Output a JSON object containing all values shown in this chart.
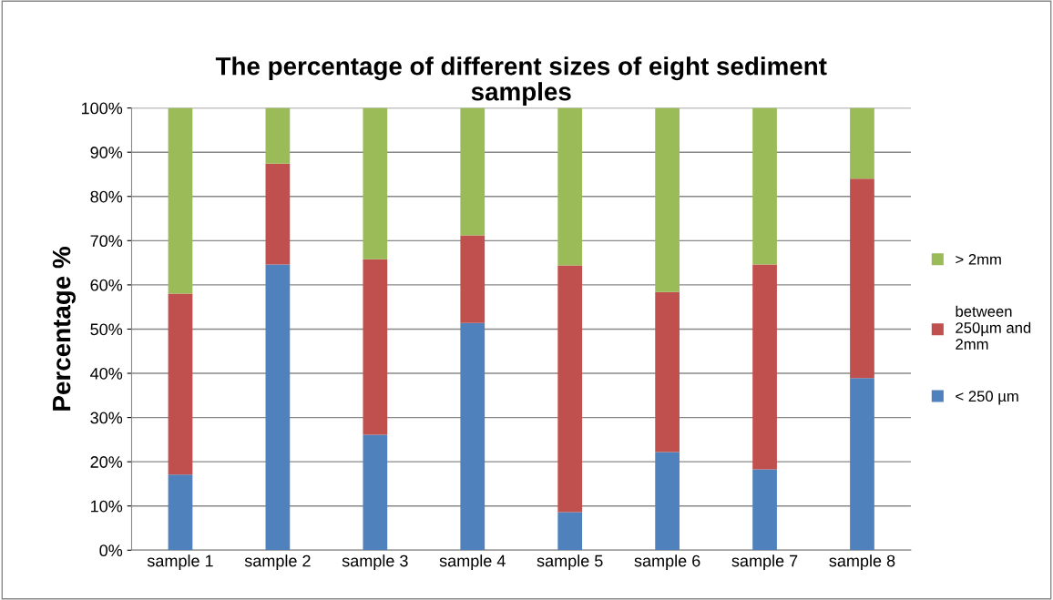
{
  "chart_data": {
    "type": "bar",
    "stacked": true,
    "title": "The percentage of different sizes of eight sediment samples",
    "ylabel": "Percentage %",
    "categories": [
      "sample 1",
      "sample 2",
      "sample 3",
      "sample 4",
      "sample 5",
      "sample 6",
      "sample 7",
      "sample 8"
    ],
    "series": [
      {
        "name": "< 250 µm",
        "color": "#4f81bd",
        "values": [
          17.1,
          64.6,
          26.1,
          51.4,
          8.6,
          22.2,
          18.3,
          38.9
        ]
      },
      {
        "name": "between 250µm and 2mm",
        "color": "#c0504d",
        "values": [
          40.9,
          22.8,
          39.7,
          19.8,
          55.8,
          36.2,
          46.3,
          45.1
        ]
      },
      {
        "name": "> 2mm",
        "color": "#9bbb59",
        "values": [
          42.0,
          12.6,
          34.2,
          28.8,
          35.6,
          41.6,
          35.4,
          16.0
        ]
      }
    ],
    "ylim": [
      0,
      100
    ],
    "yticks": [
      {
        "value": 0,
        "label": "0%"
      },
      {
        "value": 10,
        "label": "10%"
      },
      {
        "value": 20,
        "label": "20%"
      },
      {
        "value": 30,
        "label": "30%"
      },
      {
        "value": 40,
        "label": "40%"
      },
      {
        "value": 50,
        "label": "50%"
      },
      {
        "value": 60,
        "label": "60%"
      },
      {
        "value": 70,
        "label": "70%"
      },
      {
        "value": 80,
        "label": "80%"
      },
      {
        "value": 90,
        "label": "90%"
      },
      {
        "value": 100,
        "label": "100%"
      }
    ],
    "grid": "y",
    "legend": "right"
  }
}
